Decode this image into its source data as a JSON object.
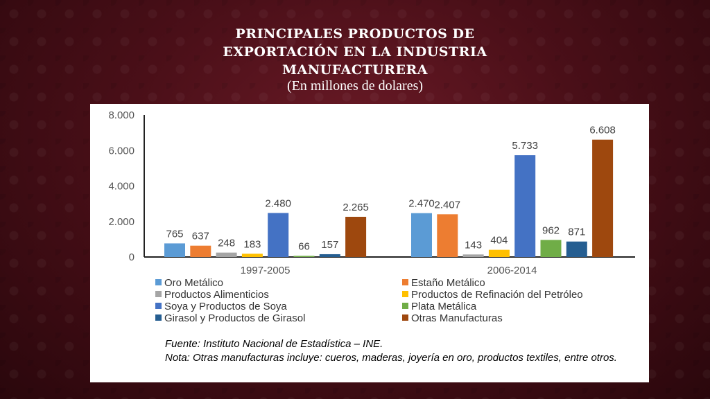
{
  "slide": {
    "title_lines": [
      "PRINCIPALES PRODUCTOS DE",
      "EXPORTACIÓN EN LA INDUSTRIA",
      "MANUFACTURERA"
    ],
    "subtitle": "(En millones de dolares)",
    "source": "Fuente: Instituto Nacional de Estadística – INE.",
    "note": "Nota: Otras manufacturas incluye: cueros, maderas, joyería en oro, productos textiles, entre otros."
  },
  "chart_data": {
    "type": "bar",
    "categories": [
      "1997-2005",
      "2006-2014"
    ],
    "series": [
      {
        "name": "Oro Metálico",
        "color": "#5B9BD5",
        "values": [
          765,
          2470
        ],
        "labels": [
          "765",
          "2.470"
        ]
      },
      {
        "name": "Estaño Metálico",
        "color": "#ED7D31",
        "values": [
          637,
          2407
        ],
        "labels": [
          "637",
          "2.407"
        ]
      },
      {
        "name": "Productos Alimenticios",
        "color": "#A5A5A5",
        "values": [
          248,
          143
        ],
        "labels": [
          "248",
          "143"
        ]
      },
      {
        "name": "Productos de Refinación del Petróleo",
        "color": "#FFC000",
        "values": [
          183,
          404
        ],
        "labels": [
          "183",
          "404"
        ]
      },
      {
        "name": "Soya y Productos de Soya",
        "color": "#4472C4",
        "values": [
          2480,
          5733
        ],
        "labels": [
          "2.480",
          "5.733"
        ]
      },
      {
        "name": "Plata Metálica",
        "color": "#70AD47",
        "values": [
          66,
          962
        ],
        "labels": [
          "66",
          "962"
        ]
      },
      {
        "name": "Girasol y Productos de Girasol",
        "color": "#255E91",
        "values": [
          157,
          871
        ],
        "labels": [
          "157",
          "871"
        ]
      },
      {
        "name": "Otras Manufacturas",
        "color": "#9E480E",
        "values": [
          2265,
          6608
        ],
        "labels": [
          "2.265",
          "6.608"
        ]
      }
    ],
    "ylim": [
      0,
      8000
    ],
    "yticks": [
      0,
      2000,
      4000,
      6000,
      8000
    ],
    "ytick_labels": [
      "0",
      "2.000",
      "4.000",
      "6.000",
      "8.000"
    ],
    "grid": false,
    "legend": "bottom, two columns"
  }
}
